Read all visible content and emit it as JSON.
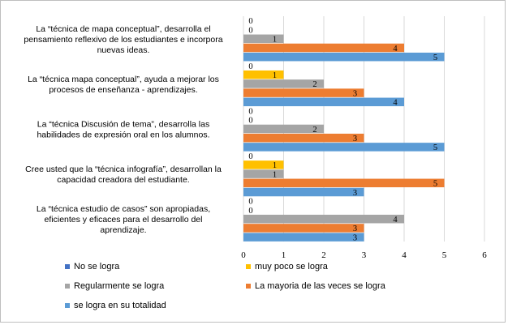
{
  "chart_data": {
    "type": "bar",
    "orientation": "horizontal",
    "categories": [
      "La “técnica de mapa conceptual”, desarrolla el pensamiento reflexivo de los estudiantes e incorpora nuevas ideas.",
      "La “técnica mapa conceptual”, ayuda a mejorar los procesos de enseñanza - aprendizajes.",
      "La “técnica Discusión de tema”, desarrolla las habilidades de expresión oral en los alumnos.",
      "Cree usted que la “técnica infografía”, desarrollan la capacidad creadora del estudiante.",
      "La “técnica estudio de casos” son apropiadas, eficientes y eficaces para el desarrollo del aprendizaje."
    ],
    "category_lines": [
      [
        "La “técnica de mapa conceptual”, desarrolla el",
        "pensamiento reflexivo de los estudiantes e incorpora",
        "nuevas ideas."
      ],
      [
        "La “técnica mapa conceptual”, ayuda a mejorar los",
        "procesos de enseñanza - aprendizajes."
      ],
      [
        "La “técnica Discusión de tema”, desarrolla las",
        "habilidades de expresión oral en los alumnos."
      ],
      [
        "Cree usted que la “técnica infografía”, desarrollan la",
        "capacidad creadora del estudiante."
      ],
      [
        "La “técnica estudio de casos” son apropiadas,",
        "eficientes y eficaces para el desarrollo del",
        "aprendizaje."
      ]
    ],
    "series": [
      {
        "name": "No se logra",
        "color": "#4472c4",
        "values": [
          0,
          0,
          0,
          0,
          0
        ]
      },
      {
        "name": "muy poco se logra",
        "color": "#ffc000",
        "values": [
          0,
          1,
          0,
          1,
          0
        ]
      },
      {
        "name": "Regularmente se logra",
        "color": "#a5a5a5",
        "values": [
          1,
          2,
          2,
          1,
          4
        ]
      },
      {
        "name": "La mayoria de las veces se logra",
        "color": "#ed7d31",
        "values": [
          4,
          3,
          3,
          5,
          3
        ]
      },
      {
        "name": "se logra en su totalidad",
        "color": "#5b9bd5",
        "values": [
          5,
          4,
          5,
          3,
          3
        ]
      }
    ],
    "xlim": [
      0,
      6
    ],
    "xticks": [
      "0",
      "1",
      "2",
      "3",
      "4",
      "5",
      "6"
    ],
    "grid": true,
    "legend_position": "bottom",
    "title": "",
    "xlabel": "",
    "ylabel": ""
  }
}
